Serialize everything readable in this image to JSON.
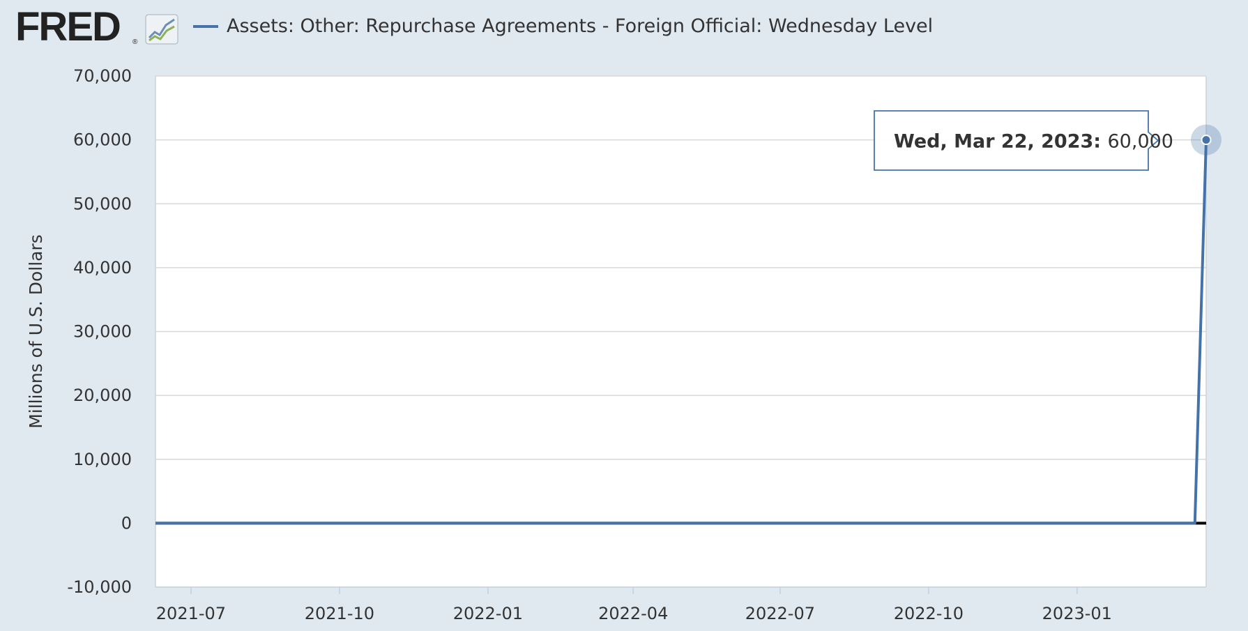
{
  "header": {
    "logo": "FRED",
    "logo_icon": "line-chart-icon",
    "legend_label": "Assets: Other: Repurchase Agreements - Foreign Official: Wednesday Level"
  },
  "colors": {
    "series": "#4572a7",
    "background": "#e1e9f0",
    "plot_background": "#ffffff",
    "zero_line": "#000000",
    "grid": "#d8d8d8"
  },
  "chart_data": {
    "type": "line",
    "title": "",
    "xlabel": "",
    "ylabel": "Millions of U.S. Dollars",
    "ylim": [
      -10000,
      70000
    ],
    "xlim": [
      "2021-06-09",
      "2023-03-22"
    ],
    "grid": true,
    "y_ticks": [
      "70,000",
      "60,000",
      "50,000",
      "40,000",
      "30,000",
      "20,000",
      "10,000",
      "0",
      "-10,000"
    ],
    "x_ticks": [
      "2021-07",
      "2021-10",
      "2022-01",
      "2022-04",
      "2022-07",
      "2022-10",
      "2023-01"
    ],
    "series": [
      {
        "name": "Assets: Other: Repurchase Agreements - Foreign Official: Wednesday Level",
        "x": [
          "2021-06-09",
          "2023-03-15",
          "2023-03-22"
        ],
        "values": [
          0,
          0,
          60000
        ]
      }
    ],
    "tooltip": {
      "date": "Wed, Mar 22, 2023:",
      "value": "60,000",
      "x": "2023-03-22",
      "y": 60000
    }
  }
}
